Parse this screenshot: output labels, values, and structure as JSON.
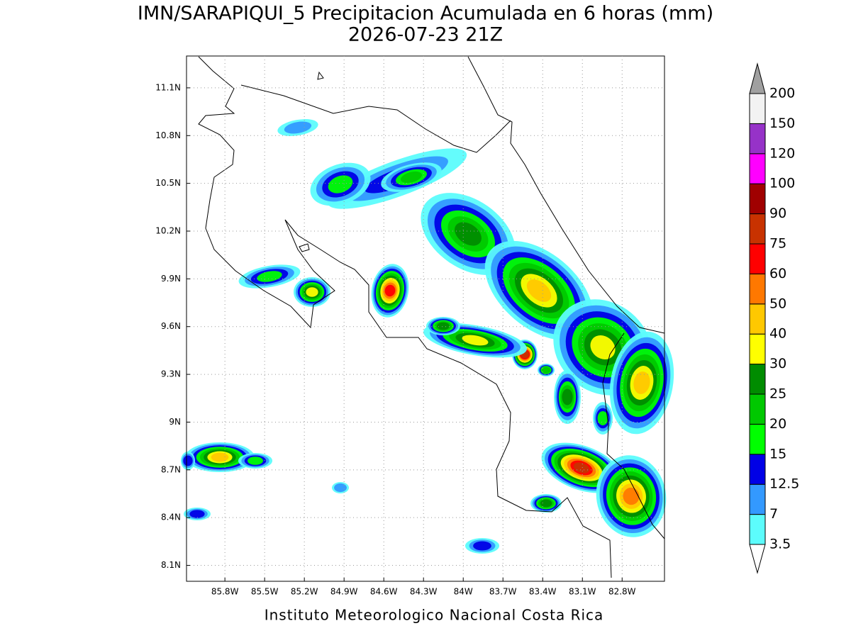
{
  "map": {
    "title": "IMN/SARAPIQUI_5 Precipitacion Acumulada en 6 horas (mm)",
    "subtitle": "2026-07-23 21Z",
    "footer": "Instituto Meteorologico Nacional Costa Rica",
    "xlim": [
      -86.09,
      -82.48
    ],
    "ylim": [
      8.0,
      11.3
    ],
    "xticks": [
      {
        "value": -85.8,
        "label": "85.8W"
      },
      {
        "value": -85.5,
        "label": "85.5W"
      },
      {
        "value": -85.2,
        "label": "85.2W"
      },
      {
        "value": -84.9,
        "label": "84.9W"
      },
      {
        "value": -84.6,
        "label": "84.6W"
      },
      {
        "value": -84.3,
        "label": "84.3W"
      },
      {
        "value": -84.0,
        "label": "84W"
      },
      {
        "value": -83.7,
        "label": "83.7W"
      },
      {
        "value": -83.4,
        "label": "83.4W"
      },
      {
        "value": -83.1,
        "label": "83.1W"
      },
      {
        "value": -82.8,
        "label": "82.8W"
      }
    ],
    "yticks": [
      {
        "value": 11.1,
        "label": "11.1N"
      },
      {
        "value": 10.8,
        "label": "10.8N"
      },
      {
        "value": 10.5,
        "label": "10.5N"
      },
      {
        "value": 10.2,
        "label": "10.2N"
      },
      {
        "value": 9.9,
        "label": "9.9N"
      },
      {
        "value": 9.6,
        "label": "9.6N"
      },
      {
        "value": 9.3,
        "label": "9.3N"
      },
      {
        "value": 9.0,
        "label": "9N"
      },
      {
        "value": 8.7,
        "label": "8.7N"
      },
      {
        "value": 8.4,
        "label": "8.4N"
      },
      {
        "value": 8.1,
        "label": "8.1N"
      }
    ],
    "grid": true,
    "colorbar": {
      "levels": [
        3.5,
        7,
        12.5,
        15,
        20,
        25,
        30,
        40,
        50,
        60,
        75,
        90,
        100,
        120,
        150,
        200
      ],
      "under_color": "#ffffff",
      "colors": [
        "#5cfcfc",
        "#3399ff",
        "#0000e6",
        "#00ff00",
        "#00c800",
        "#008c00",
        "#ffff00",
        "#ffc800",
        "#ff7800",
        "#ff0000",
        "#c83200",
        "#a00000",
        "#ff00ff",
        "#9632c8",
        "#f2f2f2"
      ],
      "over_color": "#a0a0a0"
    }
  }
}
